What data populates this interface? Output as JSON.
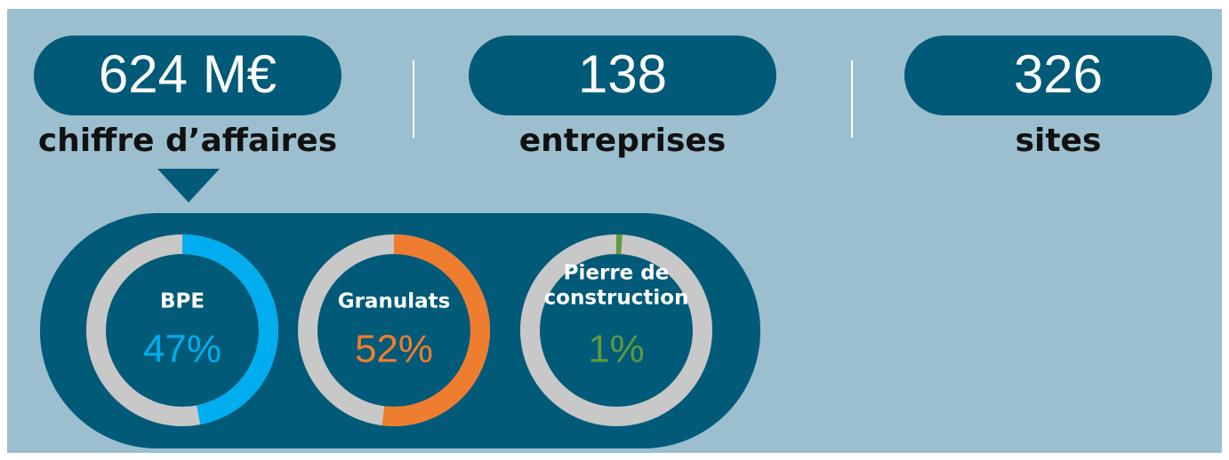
{
  "stats": [
    {
      "value": "624 M€",
      "label": "chiffre d’affaires"
    },
    {
      "value": "138",
      "label": "entreprises"
    },
    {
      "value": "326",
      "label": "sites"
    }
  ],
  "donuts": [
    {
      "label_lines": [
        "BPE"
      ],
      "value": 47,
      "value_label": "47%",
      "color": "#00aeef"
    },
    {
      "label_lines": [
        "Granulats"
      ],
      "value": 52,
      "value_label": "52%",
      "color": "#ef7d2f"
    },
    {
      "label_lines": [
        "Pierre de",
        "construction"
      ],
      "value": 1,
      "value_label": "1%",
      "color": "#5e9a3f"
    }
  ]
}
